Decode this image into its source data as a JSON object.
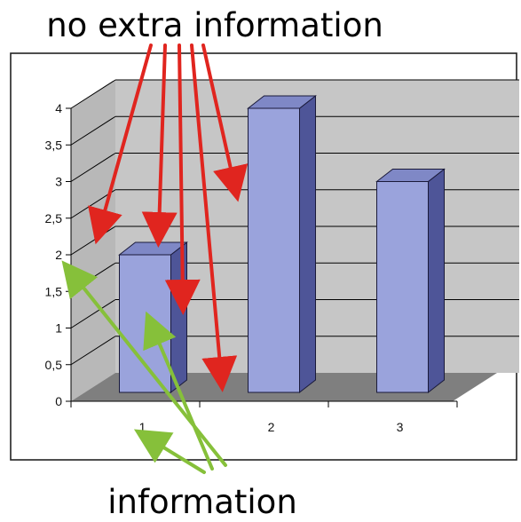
{
  "annotations": {
    "top_caption": "no extra information",
    "bottom_caption": "information",
    "red_arrow_color": "#e0251f",
    "green_arrow_color": "#86c03a"
  },
  "colors": {
    "bar_front": "#9aa3dc",
    "bar_top": "#7f88c6",
    "bar_side": "#4e5598",
    "wall": "#c6c6c6",
    "floor": "#7f7f7f",
    "grid": "#000000"
  },
  "chart_data": {
    "type": "bar",
    "style": "3d",
    "categories": [
      "1",
      "2",
      "3"
    ],
    "values": [
      2,
      4,
      3
    ],
    "ylim": [
      0,
      4
    ],
    "yticks": [
      "0",
      "0,5",
      "1",
      "1,5",
      "2",
      "2,5",
      "3",
      "3,5",
      "4"
    ],
    "grid": true,
    "legend": "none",
    "title": "",
    "xlabel": "",
    "ylabel": ""
  }
}
